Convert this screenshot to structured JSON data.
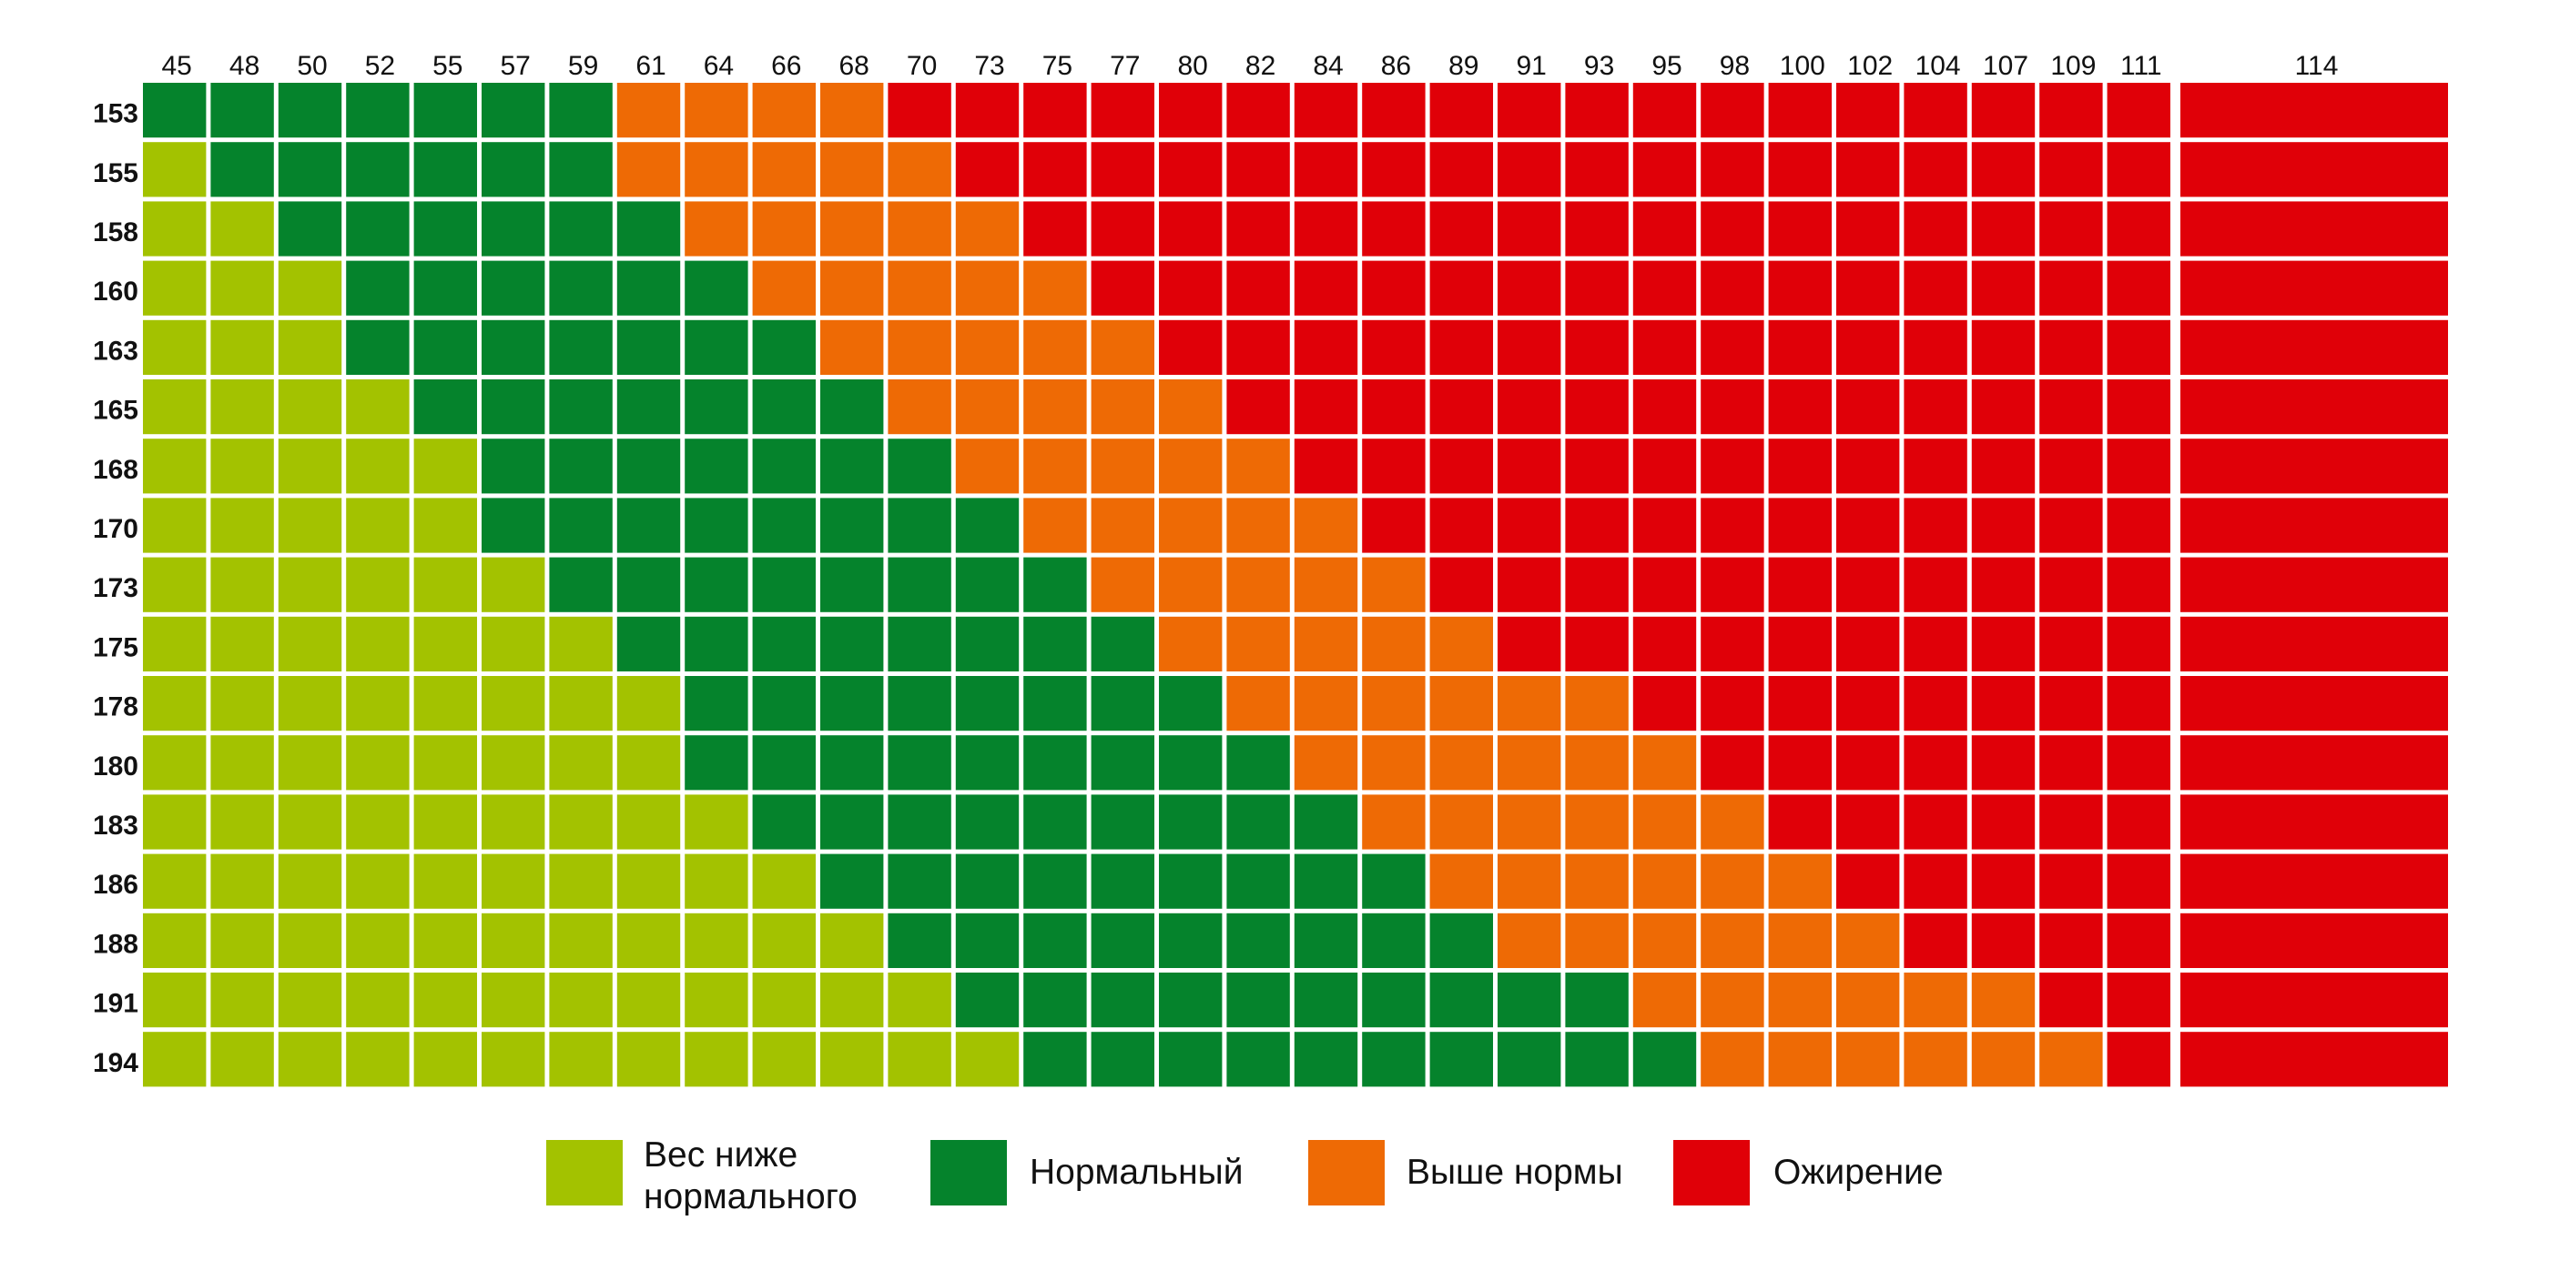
{
  "chart_data": {
    "type": "heatmap",
    "title": "",
    "x": [
      45,
      48,
      50,
      52,
      55,
      57,
      59,
      61,
      64,
      66,
      68,
      70,
      73,
      75,
      77,
      80,
      82,
      84,
      86,
      89,
      91,
      93,
      95,
      98,
      100,
      102,
      104,
      107,
      109,
      111,
      114
    ],
    "y": [
      153,
      155,
      158,
      160,
      163,
      165,
      168,
      170,
      173,
      175,
      178,
      180,
      183,
      186,
      188,
      191,
      194
    ],
    "categories": [
      {
        "id": 0,
        "label": "Вес ниже\nнормального",
        "color": "#a3c200"
      },
      {
        "id": 1,
        "label": "Нормальный",
        "color": "#05832c"
      },
      {
        "id": 2,
        "label": "Выше нормы",
        "color": "#ee6a05"
      },
      {
        "id": 3,
        "label": "Ожирение",
        "color": "#e00008"
      }
    ],
    "row_boundaries": [
      {
        "height": 153,
        "normal_from": 45,
        "over_from": 61,
        "obese_from": 70
      },
      {
        "height": 155,
        "normal_from": 48,
        "over_from": 61,
        "obese_from": 73
      },
      {
        "height": 158,
        "normal_from": 50,
        "over_from": 64,
        "obese_from": 75
      },
      {
        "height": 160,
        "normal_from": 52,
        "over_from": 66,
        "obese_from": 77
      },
      {
        "height": 163,
        "normal_from": 52,
        "over_from": 68,
        "obese_from": 80
      },
      {
        "height": 165,
        "normal_from": 55,
        "over_from": 70,
        "obese_from": 82
      },
      {
        "height": 168,
        "normal_from": 57,
        "over_from": 73,
        "obese_from": 84
      },
      {
        "height": 170,
        "normal_from": 57,
        "over_from": 75,
        "obese_from": 86
      },
      {
        "height": 173,
        "normal_from": 59,
        "over_from": 77,
        "obese_from": 89
      },
      {
        "height": 175,
        "normal_from": 61,
        "over_from": 80,
        "obese_from": 91
      },
      {
        "height": 178,
        "normal_from": 64,
        "over_from": 82,
        "obese_from": 95
      },
      {
        "height": 180,
        "normal_from": 64,
        "over_from": 84,
        "obese_from": 98
      },
      {
        "height": 183,
        "normal_from": 66,
        "over_from": 86,
        "obese_from": 100
      },
      {
        "height": 186,
        "normal_from": 68,
        "over_from": 89,
        "obese_from": 102
      },
      {
        "height": 188,
        "normal_from": 70,
        "over_from": 91,
        "obese_from": 104
      },
      {
        "height": 191,
        "normal_from": 73,
        "over_from": 95,
        "obese_from": 109
      },
      {
        "height": 194,
        "normal_from": 75,
        "over_from": 98,
        "obese_from": 111
      }
    ],
    "xlabel": "",
    "ylabel": "",
    "legend_position": "bottom",
    "grid": true
  }
}
